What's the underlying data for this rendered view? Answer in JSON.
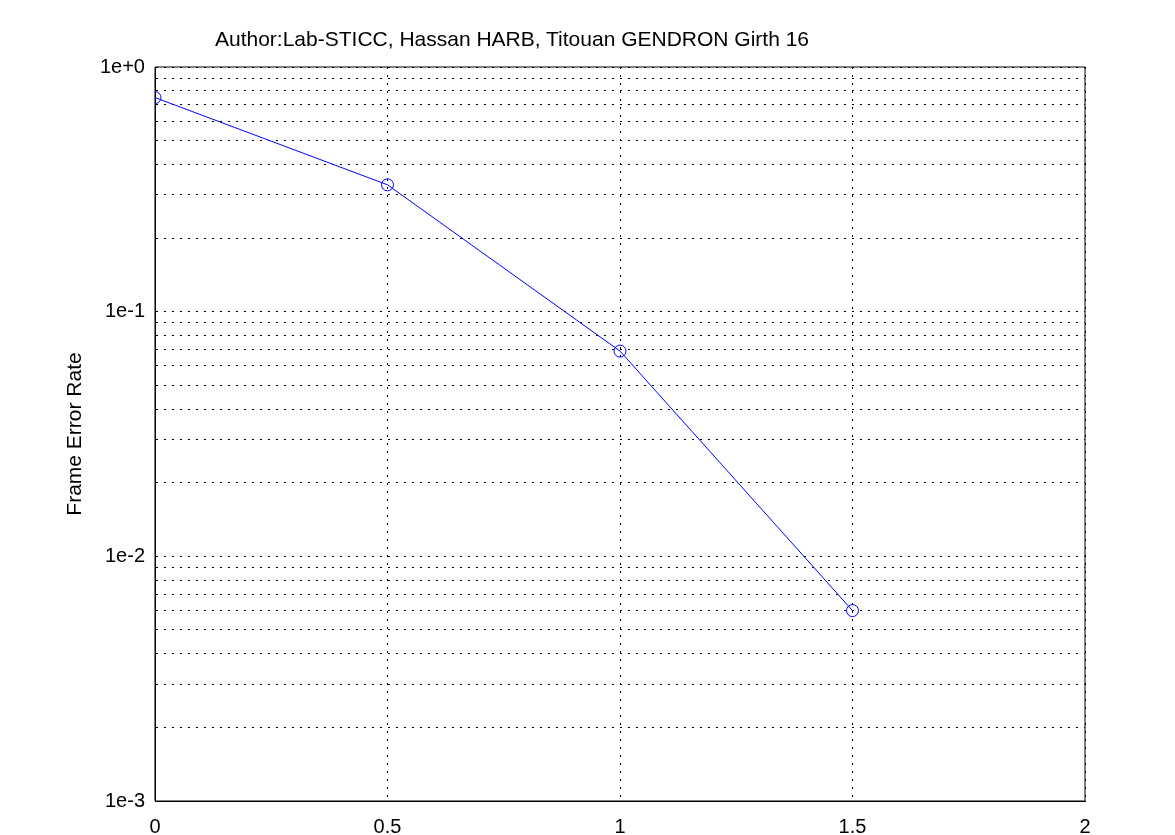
{
  "chart_data": {
    "type": "line",
    "title": "Author:Lab-STICC, Hassan HARB, Titouan GENDRON Girth 16",
    "ylabel": "Frame Error Rate",
    "x": [
      0,
      0.5,
      1,
      1.5
    ],
    "values": [
      0.75,
      0.33,
      0.069,
      0.006
    ],
    "color": "#0000ff",
    "xlim": [
      0,
      2
    ],
    "xticks": [
      0,
      0.5,
      1,
      1.5,
      2
    ],
    "ylim": [
      0.001,
      1
    ],
    "log": "y",
    "yticks": [
      {
        "value": 0.001,
        "label": "1e-3"
      },
      {
        "value": 0.002,
        "label": null
      },
      {
        "value": 0.003,
        "label": null
      },
      {
        "value": 0.004,
        "label": null
      },
      {
        "value": 0.005,
        "label": null
      },
      {
        "value": 0.006,
        "label": null
      },
      {
        "value": 0.007,
        "label": null
      },
      {
        "value": 0.008,
        "label": null
      },
      {
        "value": 0.009,
        "label": null
      },
      {
        "value": 0.01,
        "label": "1e-2"
      },
      {
        "value": 0.02,
        "label": null
      },
      {
        "value": 0.03,
        "label": null
      },
      {
        "value": 0.04,
        "label": null
      },
      {
        "value": 0.05,
        "label": null
      },
      {
        "value": 0.06,
        "label": null
      },
      {
        "value": 0.07,
        "label": null
      },
      {
        "value": 0.08,
        "label": null
      },
      {
        "value": 0.09,
        "label": null
      },
      {
        "value": 0.1,
        "label": "1e-1"
      },
      {
        "value": 0.2,
        "label": null
      },
      {
        "value": 0.3,
        "label": null
      },
      {
        "value": 0.4,
        "label": null
      },
      {
        "value": 0.5,
        "label": null
      },
      {
        "value": 0.6,
        "label": null
      },
      {
        "value": 0.7,
        "label": null
      },
      {
        "value": 0.8,
        "label": null
      },
      {
        "value": 0.9,
        "label": null
      },
      {
        "value": 1,
        "label": "1e+0"
      }
    ],
    "grid": true,
    "marker": "circle",
    "line_style": "solid"
  }
}
